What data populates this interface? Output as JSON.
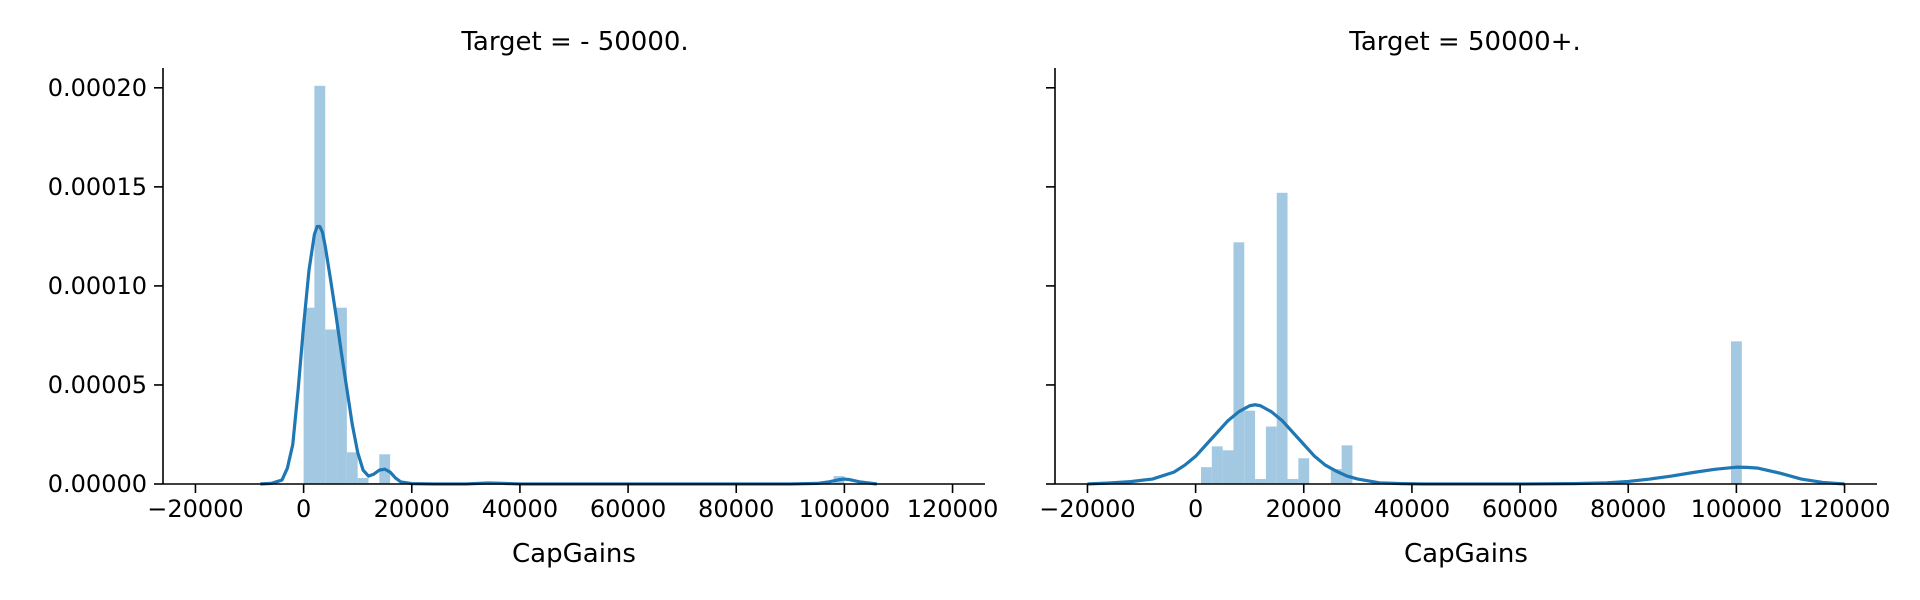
{
  "chart_data": [
    {
      "type": "bar",
      "title": "Target =  - 50000.",
      "xlabel": "CapGains",
      "ylabel": "",
      "xlim": [
        -26000,
        126000
      ],
      "ylim": [
        0,
        0.00021
      ],
      "x_ticks": [
        -20000,
        0,
        20000,
        40000,
        60000,
        80000,
        100000,
        120000
      ],
      "x_tick_labels": [
        "−20000",
        "0",
        "20000",
        "40000",
        "60000",
        "80000",
        "100000",
        "120000"
      ],
      "y_ticks": [
        0,
        5e-05,
        0.0001,
        0.00015,
        0.0002
      ],
      "y_tick_labels": [
        "0.00000",
        "0.00005",
        "0.00010",
        "0.00015",
        "0.00020"
      ],
      "show_y_tick_labels": true,
      "hist_color": "#a2c8e2",
      "line_color": "#1f77b4",
      "histogram": {
        "bin_start": 0,
        "bin_width": 2000,
        "values": [
          8.9e-05,
          0.000201,
          7.8e-05,
          8.9e-05,
          1.6e-05,
          3e-06,
          5e-07,
          1.5e-05,
          0,
          0,
          0,
          0,
          0,
          0,
          0,
          0,
          0,
          0,
          0,
          0,
          0,
          0,
          0,
          0,
          0,
          0,
          0,
          0,
          0,
          0,
          0,
          0,
          0,
          0,
          0,
          0,
          0,
          0,
          0,
          0,
          0,
          0,
          0,
          0,
          0,
          0,
          0,
          0,
          0,
          4e-06
        ]
      },
      "kde": {
        "x": [
          -8000,
          -6000,
          -4000,
          -3000,
          -2000,
          -1000,
          0,
          1000,
          2000,
          2500,
          3000,
          3500,
          4000,
          5000,
          6000,
          7000,
          8000,
          9000,
          10000,
          11000,
          12000,
          13000,
          14000,
          15000,
          16000,
          17000,
          18000,
          20000,
          24000,
          30000,
          34000,
          36000,
          40000,
          60000,
          90000,
          95000,
          97000,
          99000,
          100000,
          101000,
          103000,
          106000
        ],
        "y": [
          0,
          3e-07,
          2e-06,
          8e-06,
          2e-05,
          4.8e-05,
          8e-05,
          0.000108,
          0.000126,
          0.00013,
          0.00013,
          0.000127,
          0.00012,
          0.000103,
          8.5e-05,
          6.6e-05,
          4.8e-05,
          3e-05,
          1.6e-05,
          7e-06,
          4e-06,
          5e-06,
          7e-06,
          7.5e-06,
          6e-06,
          3e-06,
          1e-06,
          2e-07,
          0,
          0,
          5e-07,
          4e-07,
          0,
          0,
          0,
          3e-07,
          1e-06,
          2.2e-06,
          2.5e-06,
          2.2e-06,
          1e-06,
          0
        ]
      }
    },
    {
      "type": "bar",
      "title": "Target =  50000+.",
      "xlabel": "CapGains",
      "ylabel": "",
      "xlim": [
        -26000,
        126000
      ],
      "ylim": [
        0,
        0.00021
      ],
      "x_ticks": [
        -20000,
        0,
        20000,
        40000,
        60000,
        80000,
        100000,
        120000
      ],
      "x_tick_labels": [
        "−20000",
        "0",
        "20000",
        "40000",
        "60000",
        "80000",
        "100000",
        "120000"
      ],
      "y_ticks": [
        0,
        5e-05,
        0.0001,
        0.00015,
        0.0002
      ],
      "y_tick_labels": [
        "",
        "",
        "",
        "",
        ""
      ],
      "show_y_tick_labels": false,
      "hist_color": "#a2c8e2",
      "line_color": "#1f77b4",
      "histogram": {
        "bin_start": 1000,
        "bin_width": 2000,
        "values": [
          8.5e-06,
          1.9e-05,
          1.7e-05,
          0.000122,
          3.7e-05,
          2.5e-06,
          2.9e-05,
          0.000147,
          2.5e-06,
          1.3e-05,
          0,
          0,
          7.5e-06,
          1.95e-05,
          0,
          0,
          0,
          0,
          0,
          0,
          0,
          0,
          0,
          0,
          0,
          0,
          0,
          0,
          0,
          0,
          0,
          0,
          0,
          0,
          0,
          0,
          0,
          0,
          0,
          0,
          0,
          0,
          0,
          0,
          0,
          0,
          0,
          0,
          0,
          7.2e-05
        ]
      },
      "kde": {
        "x": [
          -20000,
          -16000,
          -12000,
          -8000,
          -4000,
          -2000,
          0,
          2000,
          4000,
          6000,
          8000,
          10000,
          11000,
          12000,
          14000,
          16000,
          18000,
          20000,
          22000,
          24000,
          26000,
          28000,
          30000,
          34000,
          38000,
          42000,
          50000,
          60000,
          70000,
          76000,
          80000,
          84000,
          88000,
          92000,
          96000,
          100000,
          102000,
          104000,
          108000,
          112000,
          116000,
          120000
        ],
        "y": [
          0,
          5e-07,
          1.2e-06,
          2.5e-06,
          6e-06,
          9.5e-06,
          1.4e-05,
          2e-05,
          2.6e-05,
          3.2e-05,
          3.65e-05,
          3.95e-05,
          4e-05,
          3.95e-05,
          3.65e-05,
          3.2e-05,
          2.6e-05,
          2e-05,
          1.4e-05,
          9.5e-06,
          6.5e-06,
          4e-06,
          2.5e-06,
          6e-07,
          2e-07,
          0,
          0,
          0,
          2e-07,
          6e-07,
          1.3e-06,
          2.5e-06,
          4e-06,
          5.8e-06,
          7.4e-06,
          8.5e-06,
          8.4e-06,
          8e-06,
          5.5e-06,
          2.5e-06,
          8e-07,
          0
        ]
      }
    }
  ]
}
